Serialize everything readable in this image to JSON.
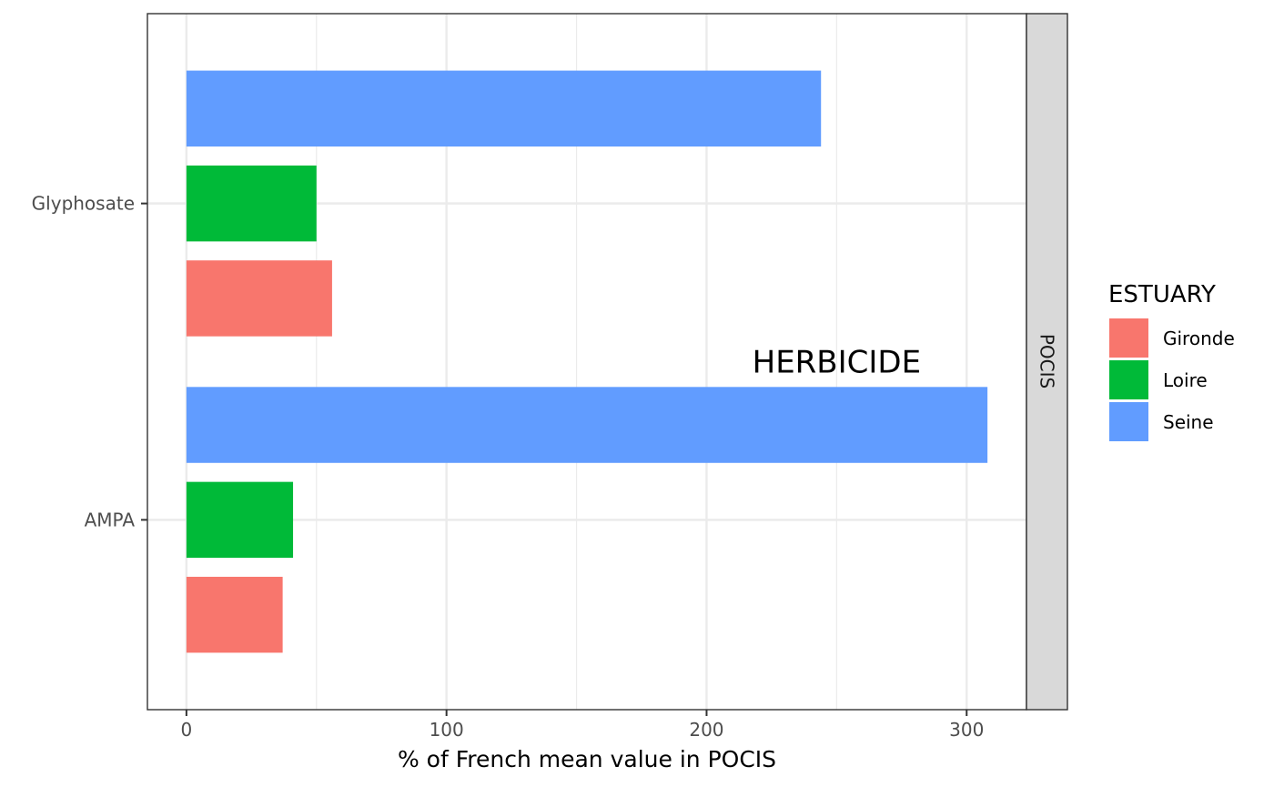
{
  "chart_data": {
    "type": "bar",
    "orientation": "horizontal",
    "categories": [
      "Glyphosate",
      "AMPA"
    ],
    "series": [
      {
        "name": "Gironde",
        "color": "#F8766D",
        "values": [
          56,
          37
        ]
      },
      {
        "name": "Loire",
        "color": "#00BA38",
        "values": [
          50,
          41
        ]
      },
      {
        "name": "Seine",
        "color": "#619CFF",
        "values": [
          244,
          308
        ]
      }
    ],
    "xlabel": "% of French mean value in POCIS",
    "ylabel": "",
    "xlim": [
      -15,
      323
    ],
    "x_ticks": [
      0,
      100,
      200,
      300
    ],
    "grid": true,
    "facet_label": "POCIS",
    "annotation": {
      "text": "HERBICIDE",
      "x": 250
    },
    "legend": {
      "title": "ESTUARY",
      "position": "right"
    }
  }
}
